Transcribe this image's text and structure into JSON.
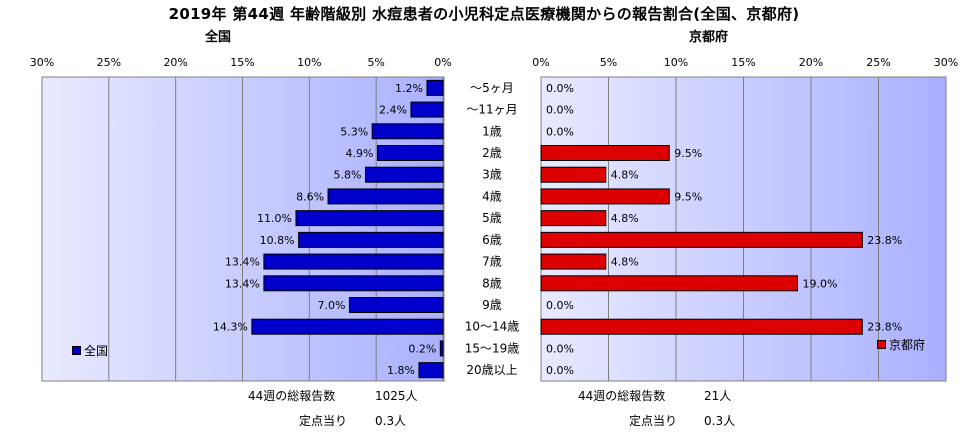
{
  "title": "2019年 第44週 年齢階級別 水痘患者の小児科定点医療機関からの報告割合(全国、京都府)",
  "chart_data": [
    {
      "type": "bar",
      "orientation": "horizontal",
      "title": "全国",
      "categories": [
        "～5ヶ月",
        "～11ヶ月",
        "1歳",
        "2歳",
        "3歳",
        "4歳",
        "5歳",
        "6歳",
        "7歳",
        "8歳",
        "9歳",
        "10～14歳",
        "15～19歳",
        "20歳以上"
      ],
      "series": [
        {
          "name": "全国",
          "values": [
            1.2,
            2.4,
            5.3,
            4.9,
            5.8,
            8.6,
            11.0,
            10.8,
            13.4,
            13.4,
            7.0,
            14.3,
            0.2,
            1.8
          ],
          "color": "#0000cc"
        }
      ],
      "axis": {
        "min": 0,
        "max": 30,
        "step": 5,
        "unit": "%",
        "reversed": true
      },
      "grid": true,
      "legend_position": "bottom-left"
    },
    {
      "type": "bar",
      "orientation": "horizontal",
      "title": "京都府",
      "categories": [
        "～5ヶ月",
        "～11ヶ月",
        "1歳",
        "2歳",
        "3歳",
        "4歳",
        "5歳",
        "6歳",
        "7歳",
        "8歳",
        "9歳",
        "10～14歳",
        "15～19歳",
        "20歳以上"
      ],
      "series": [
        {
          "name": "京都府",
          "values": [
            0.0,
            0.0,
            0.0,
            9.5,
            4.8,
            9.5,
            4.8,
            23.8,
            4.8,
            19.0,
            0.0,
            23.8,
            0.0,
            0.0
          ],
          "color": "#dd0000"
        }
      ],
      "axis": {
        "min": 0,
        "max": 30,
        "step": 5,
        "unit": "%",
        "reversed": false
      },
      "grid": true,
      "legend_position": "bottom-right"
    }
  ],
  "footer": {
    "national": {
      "total_label": "44週の総報告数",
      "total_value": "1025人",
      "per_label": "定点当り",
      "per_value": "0.3人"
    },
    "kyoto": {
      "total_label": "44週の総報告数",
      "total_value": "21人",
      "per_label": "定点当り",
      "per_value": "0.3人"
    }
  }
}
